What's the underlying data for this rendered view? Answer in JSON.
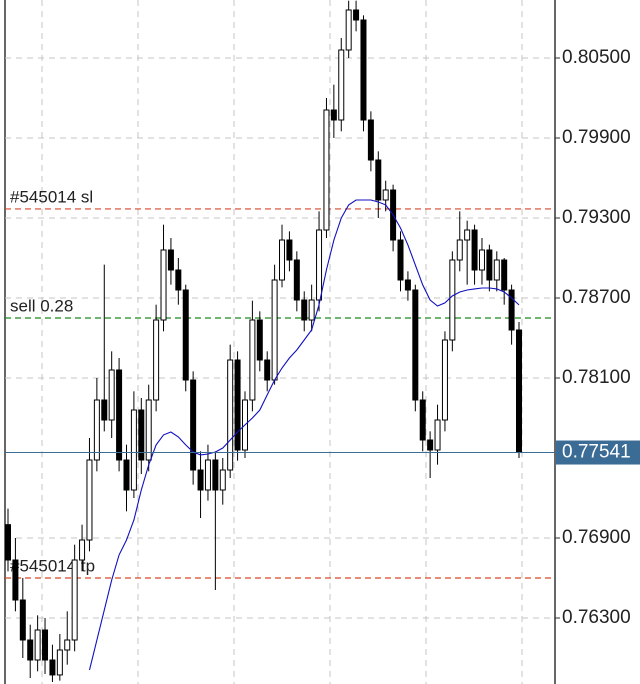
{
  "chart_data": {
    "type": "candlestick",
    "ylim": [
      0.75805,
      0.80935
    ],
    "yticks": [
      {
        "value": 0.805,
        "label": "0.80500"
      },
      {
        "value": 0.799,
        "label": "0.79900"
      },
      {
        "value": 0.793,
        "label": "0.79300"
      },
      {
        "value": 0.787,
        "label": "0.78700"
      },
      {
        "value": 0.781,
        "label": "0.78100"
      },
      {
        "value": 0.769,
        "label": "0.76900"
      },
      {
        "value": 0.763,
        "label": "0.76300"
      }
    ],
    "grid": true,
    "up_color": "#ffffff",
    "down_color": "#000000",
    "open": [
      0.77,
      0.76735,
      0.76435,
      0.76135,
      0.75985,
      0.7621,
      0.75985,
      0.75873,
      0.7606,
      0.76135,
      0.76735,
      0.76885,
      0.77485,
      0.77935,
      0.77785,
      0.7816,
      0.77485,
      0.7726,
      0.7786,
      0.77485,
      0.77935,
      0.78535,
      0.7906,
      0.7891,
      0.7876,
      0.78085,
      0.7741,
      0.7726,
      0.77485,
      0.7726,
      0.7741,
      0.78235,
      0.7756,
      0.77935,
      0.78535,
      0.78235,
      0.78085,
      0.78835,
      0.79135,
      0.78985,
      0.78685,
      0.78535,
      0.78685,
      0.7921,
      0.8011,
      0.80035,
      0.8056,
      0.8086,
      0.80785,
      0.80035,
      0.79735,
      0.79435,
      0.7951,
      0.79135,
      0.78835,
      0.7876,
      0.77935,
      0.77635,
      0.7756,
      0.77785,
      0.78385,
      0.78985,
      0.79135,
      0.7921,
      0.7891,
      0.7906,
      0.78835,
      0.78985,
      0.7876,
      0.7846
    ],
    "high": [
      0.7712,
      0.769,
      0.766,
      0.7625,
      0.7632,
      0.763,
      0.761,
      0.7618,
      0.7635,
      0.7685,
      0.77,
      0.7765,
      0.781,
      0.7895,
      0.783,
      0.7825,
      0.776,
      0.78,
      0.7795,
      0.7805,
      0.7865,
      0.7925,
      0.7915,
      0.79,
      0.788,
      0.7815,
      0.7755,
      0.776,
      0.7755,
      0.775,
      0.7835,
      0.783,
      0.78,
      0.7868,
      0.786,
      0.783,
      0.7895,
      0.7925,
      0.792,
      0.7905,
      0.7875,
      0.788,
      0.7935,
      0.802,
      0.803,
      0.8065,
      0.8093,
      0.8093,
      0.8082,
      0.801,
      0.798,
      0.7958,
      0.7955,
      0.792,
      0.789,
      0.788,
      0.78,
      0.777,
      0.779,
      0.7845,
      0.7905,
      0.7935,
      0.7928,
      0.7925,
      0.7915,
      0.791,
      0.7905,
      0.79,
      0.788,
      0.7852
    ],
    "low": [
      0.7665,
      0.7635,
      0.76,
      0.7585,
      0.759,
      0.7588,
      0.7582,
      0.7583,
      0.7595,
      0.7605,
      0.7665,
      0.768,
      0.774,
      0.777,
      0.7765,
      0.774,
      0.771,
      0.772,
      0.7738,
      0.774,
      0.7785,
      0.7845,
      0.788,
      0.7865,
      0.78,
      0.773,
      0.7705,
      0.7718,
      0.7651,
      0.7715,
      0.7735,
      0.7748,
      0.775,
      0.7785,
      0.7815,
      0.78,
      0.7805,
      0.7878,
      0.789,
      0.786,
      0.7845,
      0.7845,
      0.786,
      0.7915,
      0.799,
      0.7995,
      0.805,
      0.807,
      0.7995,
      0.7965,
      0.793,
      0.7935,
      0.7905,
      0.7875,
      0.7868,
      0.7785,
      0.7755,
      0.7735,
      0.7745,
      0.777,
      0.783,
      0.789,
      0.788,
      0.788,
      0.788,
      0.7875,
      0.7875,
      0.7865,
      0.7835,
      0.775
    ],
    "close": [
      0.76735,
      0.76435,
      0.76135,
      0.75985,
      0.7621,
      0.75985,
      0.75873,
      0.7606,
      0.76135,
      0.76735,
      0.76885,
      0.77485,
      0.77935,
      0.77785,
      0.7816,
      0.77485,
      0.7726,
      0.7786,
      0.77485,
      0.77935,
      0.78535,
      0.7906,
      0.7891,
      0.7876,
      0.78085,
      0.7741,
      0.7726,
      0.77485,
      0.7726,
      0.7741,
      0.78235,
      0.7756,
      0.77935,
      0.78535,
      0.78235,
      0.78085,
      0.78835,
      0.79135,
      0.78985,
      0.78685,
      0.78535,
      0.78685,
      0.7921,
      0.8011,
      0.80035,
      0.8056,
      0.8086,
      0.80785,
      0.80035,
      0.79735,
      0.79435,
      0.7951,
      0.79135,
      0.78835,
      0.7876,
      0.77935,
      0.77635,
      0.7756,
      0.77785,
      0.78385,
      0.78985,
      0.79135,
      0.7921,
      0.7891,
      0.7906,
      0.78835,
      0.78985,
      0.7876,
      0.7846,
      0.77541
    ],
    "moving_average": {
      "color": "#1010c0",
      "values": [
        null,
        null,
        null,
        null,
        null,
        null,
        null,
        null,
        null,
        null,
        null,
        0.7591,
        0.76135,
        0.7636,
        0.76585,
        0.76773,
        0.76885,
        0.77035,
        0.7726,
        0.77448,
        0.77598,
        0.77673,
        0.77695,
        0.77658,
        0.77598,
        0.77545,
        0.77523,
        0.7753,
        0.77545,
        0.77575,
        0.77635,
        0.77695,
        0.77748,
        0.778,
        0.7786,
        0.77973,
        0.78085,
        0.78175,
        0.7825,
        0.7831,
        0.78385,
        0.7846,
        0.78648,
        0.7891,
        0.79135,
        0.793,
        0.79398,
        0.79435,
        0.79435,
        0.79435,
        0.7942,
        0.79398,
        0.79323,
        0.79225,
        0.79098,
        0.78948,
        0.78798,
        0.78685,
        0.7864,
        0.78663,
        0.78715,
        0.78745,
        0.7876,
        0.78768,
        0.78775,
        0.78775,
        0.78768,
        0.78745,
        0.787,
        0.78648
      ]
    },
    "order_lines": [
      {
        "label": "#545014 sl",
        "value": 0.79368,
        "color": "#d9472b"
      },
      {
        "label": "sell 0.28",
        "value": 0.7855,
        "color": "#1a8a1a"
      },
      {
        "label": "#545014 tp",
        "value": 0.766,
        "color": "#d9472b"
      }
    ],
    "last_price": {
      "value": 0.77541,
      "color": "#3b6c96"
    }
  }
}
